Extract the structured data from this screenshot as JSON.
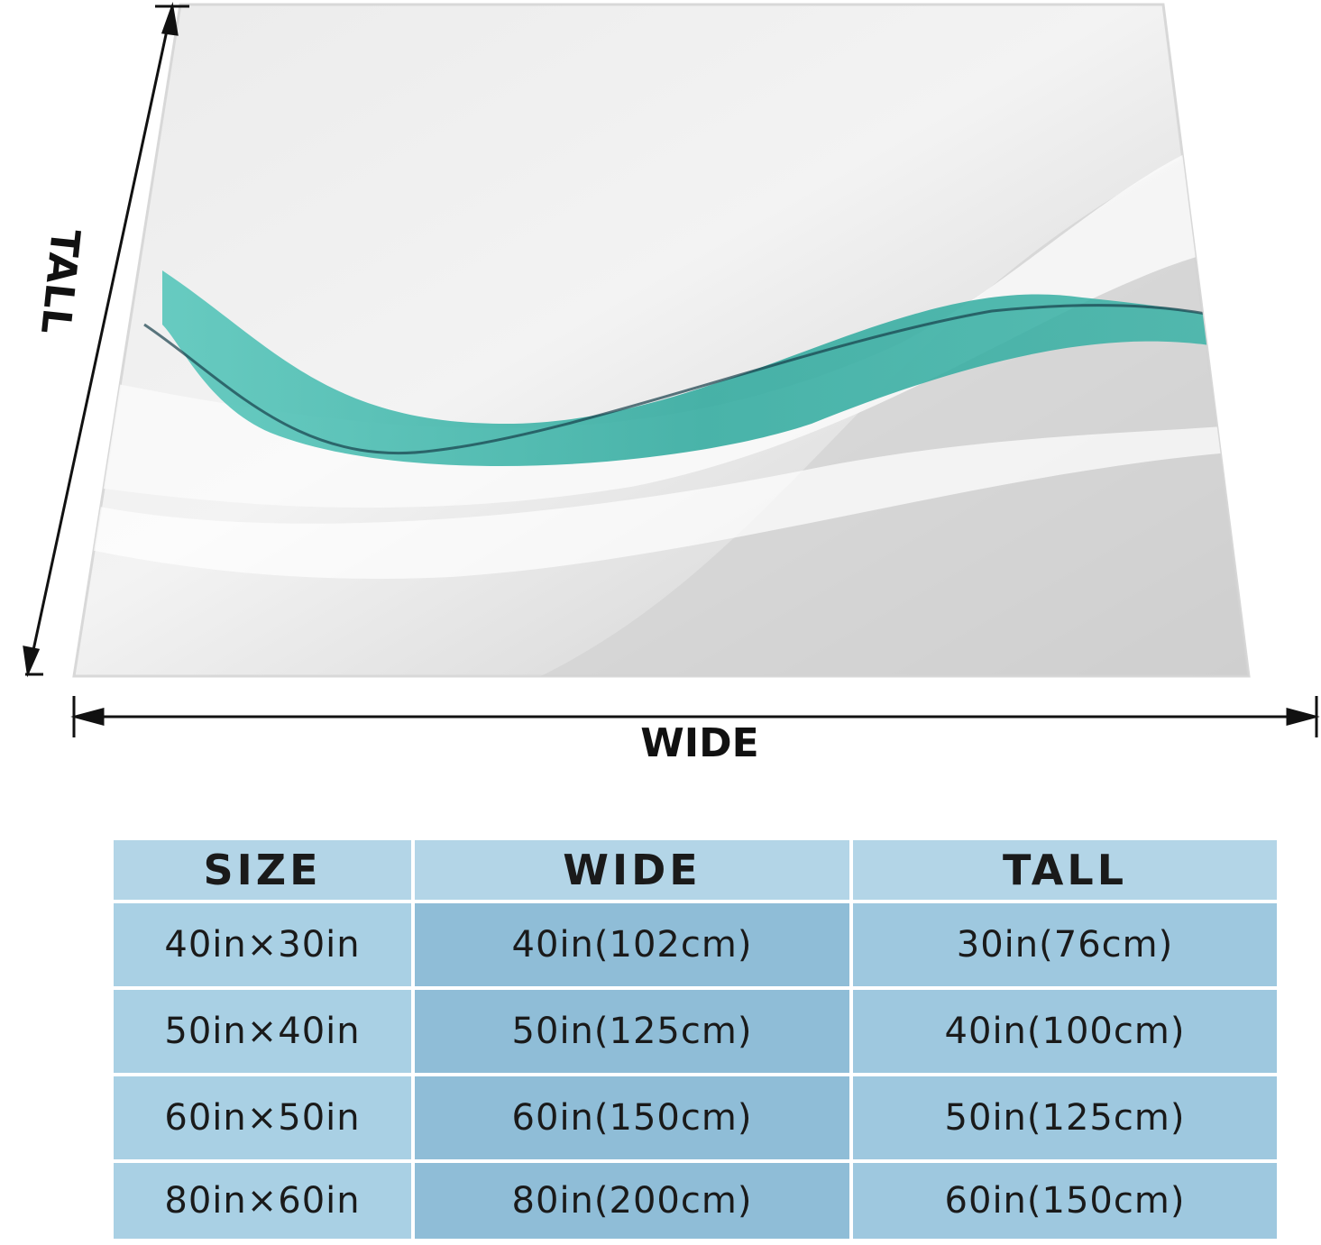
{
  "dimension_labels": {
    "tall": "TALL",
    "wide": "WIDE"
  },
  "table": {
    "header": [
      "SIZE",
      "WIDE",
      "TALL"
    ],
    "rows": [
      [
        "40in×30in",
        "40in(102cm)",
        "30in(76cm)"
      ],
      [
        "50in×40in",
        "50in(125cm)",
        "40in(100cm)"
      ],
      [
        "60in×50in",
        "60in(150cm)",
        "50in(125cm)"
      ],
      [
        "80in×60in",
        "80in(200cm)",
        "60in(150cm)"
      ]
    ]
  }
}
